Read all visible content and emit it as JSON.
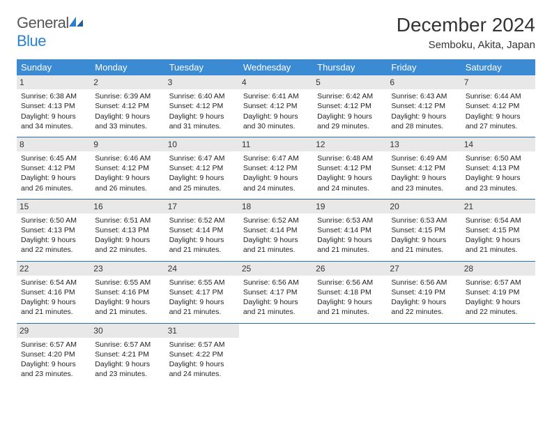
{
  "logo": {
    "part1": "General",
    "part2": "Blue"
  },
  "title": "December 2024",
  "location": "Semboku, Akita, Japan",
  "colors": {
    "header_bg": "#3b8bd4",
    "header_fg": "#ffffff",
    "daynum_bg": "#e8e8e8",
    "rule": "#2a6da8",
    "logo_gray": "#555555",
    "logo_blue": "#2a7fcf"
  },
  "typography": {
    "title_fontsize": 28,
    "location_fontsize": 15,
    "dow_fontsize": 13,
    "cell_fontsize": 10.5
  },
  "days_of_week": [
    "Sunday",
    "Monday",
    "Tuesday",
    "Wednesday",
    "Thursday",
    "Friday",
    "Saturday"
  ],
  "weeks": [
    [
      {
        "n": "1",
        "sr": "Sunrise: 6:38 AM",
        "ss": "Sunset: 4:13 PM",
        "d1": "Daylight: 9 hours",
        "d2": "and 34 minutes."
      },
      {
        "n": "2",
        "sr": "Sunrise: 6:39 AM",
        "ss": "Sunset: 4:12 PM",
        "d1": "Daylight: 9 hours",
        "d2": "and 33 minutes."
      },
      {
        "n": "3",
        "sr": "Sunrise: 6:40 AM",
        "ss": "Sunset: 4:12 PM",
        "d1": "Daylight: 9 hours",
        "d2": "and 31 minutes."
      },
      {
        "n": "4",
        "sr": "Sunrise: 6:41 AM",
        "ss": "Sunset: 4:12 PM",
        "d1": "Daylight: 9 hours",
        "d2": "and 30 minutes."
      },
      {
        "n": "5",
        "sr": "Sunrise: 6:42 AM",
        "ss": "Sunset: 4:12 PM",
        "d1": "Daylight: 9 hours",
        "d2": "and 29 minutes."
      },
      {
        "n": "6",
        "sr": "Sunrise: 6:43 AM",
        "ss": "Sunset: 4:12 PM",
        "d1": "Daylight: 9 hours",
        "d2": "and 28 minutes."
      },
      {
        "n": "7",
        "sr": "Sunrise: 6:44 AM",
        "ss": "Sunset: 4:12 PM",
        "d1": "Daylight: 9 hours",
        "d2": "and 27 minutes."
      }
    ],
    [
      {
        "n": "8",
        "sr": "Sunrise: 6:45 AM",
        "ss": "Sunset: 4:12 PM",
        "d1": "Daylight: 9 hours",
        "d2": "and 26 minutes."
      },
      {
        "n": "9",
        "sr": "Sunrise: 6:46 AM",
        "ss": "Sunset: 4:12 PM",
        "d1": "Daylight: 9 hours",
        "d2": "and 26 minutes."
      },
      {
        "n": "10",
        "sr": "Sunrise: 6:47 AM",
        "ss": "Sunset: 4:12 PM",
        "d1": "Daylight: 9 hours",
        "d2": "and 25 minutes."
      },
      {
        "n": "11",
        "sr": "Sunrise: 6:47 AM",
        "ss": "Sunset: 4:12 PM",
        "d1": "Daylight: 9 hours",
        "d2": "and 24 minutes."
      },
      {
        "n": "12",
        "sr": "Sunrise: 6:48 AM",
        "ss": "Sunset: 4:12 PM",
        "d1": "Daylight: 9 hours",
        "d2": "and 24 minutes."
      },
      {
        "n": "13",
        "sr": "Sunrise: 6:49 AM",
        "ss": "Sunset: 4:12 PM",
        "d1": "Daylight: 9 hours",
        "d2": "and 23 minutes."
      },
      {
        "n": "14",
        "sr": "Sunrise: 6:50 AM",
        "ss": "Sunset: 4:13 PM",
        "d1": "Daylight: 9 hours",
        "d2": "and 23 minutes."
      }
    ],
    [
      {
        "n": "15",
        "sr": "Sunrise: 6:50 AM",
        "ss": "Sunset: 4:13 PM",
        "d1": "Daylight: 9 hours",
        "d2": "and 22 minutes."
      },
      {
        "n": "16",
        "sr": "Sunrise: 6:51 AM",
        "ss": "Sunset: 4:13 PM",
        "d1": "Daylight: 9 hours",
        "d2": "and 22 minutes."
      },
      {
        "n": "17",
        "sr": "Sunrise: 6:52 AM",
        "ss": "Sunset: 4:14 PM",
        "d1": "Daylight: 9 hours",
        "d2": "and 21 minutes."
      },
      {
        "n": "18",
        "sr": "Sunrise: 6:52 AM",
        "ss": "Sunset: 4:14 PM",
        "d1": "Daylight: 9 hours",
        "d2": "and 21 minutes."
      },
      {
        "n": "19",
        "sr": "Sunrise: 6:53 AM",
        "ss": "Sunset: 4:14 PM",
        "d1": "Daylight: 9 hours",
        "d2": "and 21 minutes."
      },
      {
        "n": "20",
        "sr": "Sunrise: 6:53 AM",
        "ss": "Sunset: 4:15 PM",
        "d1": "Daylight: 9 hours",
        "d2": "and 21 minutes."
      },
      {
        "n": "21",
        "sr": "Sunrise: 6:54 AM",
        "ss": "Sunset: 4:15 PM",
        "d1": "Daylight: 9 hours",
        "d2": "and 21 minutes."
      }
    ],
    [
      {
        "n": "22",
        "sr": "Sunrise: 6:54 AM",
        "ss": "Sunset: 4:16 PM",
        "d1": "Daylight: 9 hours",
        "d2": "and 21 minutes."
      },
      {
        "n": "23",
        "sr": "Sunrise: 6:55 AM",
        "ss": "Sunset: 4:16 PM",
        "d1": "Daylight: 9 hours",
        "d2": "and 21 minutes."
      },
      {
        "n": "24",
        "sr": "Sunrise: 6:55 AM",
        "ss": "Sunset: 4:17 PM",
        "d1": "Daylight: 9 hours",
        "d2": "and 21 minutes."
      },
      {
        "n": "25",
        "sr": "Sunrise: 6:56 AM",
        "ss": "Sunset: 4:17 PM",
        "d1": "Daylight: 9 hours",
        "d2": "and 21 minutes."
      },
      {
        "n": "26",
        "sr": "Sunrise: 6:56 AM",
        "ss": "Sunset: 4:18 PM",
        "d1": "Daylight: 9 hours",
        "d2": "and 21 minutes."
      },
      {
        "n": "27",
        "sr": "Sunrise: 6:56 AM",
        "ss": "Sunset: 4:19 PM",
        "d1": "Daylight: 9 hours",
        "d2": "and 22 minutes."
      },
      {
        "n": "28",
        "sr": "Sunrise: 6:57 AM",
        "ss": "Sunset: 4:19 PM",
        "d1": "Daylight: 9 hours",
        "d2": "and 22 minutes."
      }
    ],
    [
      {
        "n": "29",
        "sr": "Sunrise: 6:57 AM",
        "ss": "Sunset: 4:20 PM",
        "d1": "Daylight: 9 hours",
        "d2": "and 23 minutes."
      },
      {
        "n": "30",
        "sr": "Sunrise: 6:57 AM",
        "ss": "Sunset: 4:21 PM",
        "d1": "Daylight: 9 hours",
        "d2": "and 23 minutes."
      },
      {
        "n": "31",
        "sr": "Sunrise: 6:57 AM",
        "ss": "Sunset: 4:22 PM",
        "d1": "Daylight: 9 hours",
        "d2": "and 24 minutes."
      },
      null,
      null,
      null,
      null
    ]
  ]
}
